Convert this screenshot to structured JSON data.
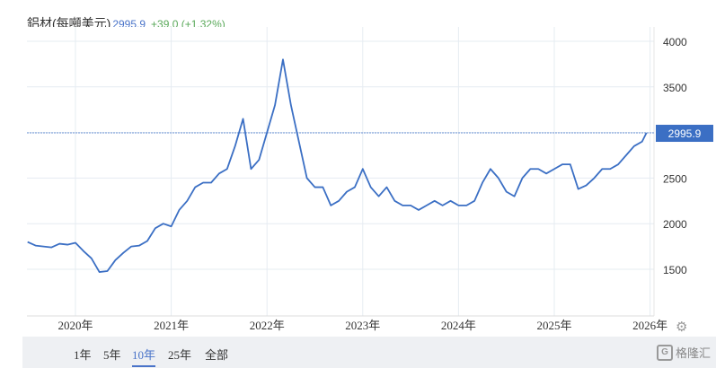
{
  "header": {
    "title": "鋁材(每噸美元)",
    "price": "2995.9",
    "change": "+39.0 (+1.32%)"
  },
  "colors": {
    "line": "#3b6fc4",
    "price_label_bg": "#3b6fc4",
    "change": "#5aa95a",
    "grid": "#e6ecf2"
  },
  "chart_data": {
    "type": "line",
    "title": "鋁材(每噸美元)",
    "ylim": [
      1200,
      4200
    ],
    "yticks": [
      1500,
      2000,
      2500,
      3000,
      3500,
      4000
    ],
    "ytick_labels": [
      "1500",
      "2000",
      "2500",
      "",
      "3500",
      "4000"
    ],
    "xticks": [
      "2020年",
      "2021年",
      "2022年",
      "2023年",
      "2024年",
      "2025年",
      "2026年"
    ],
    "grid": true,
    "last_value_label": "2995.9",
    "last_value": 2995.9,
    "x_start": "2019-07",
    "x_step": "monthly",
    "values": [
      1800,
      1760,
      1750,
      1740,
      1780,
      1770,
      1790,
      1700,
      1620,
      1470,
      1480,
      1600,
      1680,
      1750,
      1760,
      1810,
      1950,
      2000,
      1970,
      2150,
      2250,
      2400,
      2450,
      2450,
      2550,
      2600,
      2850,
      3150,
      2600,
      2700,
      3000,
      3300,
      3800,
      3300,
      2900,
      2500,
      2400,
      2400,
      2200,
      2250,
      2350,
      2400,
      2600,
      2400,
      2300,
      2400,
      2250,
      2200,
      2200,
      2150,
      2200,
      2250,
      2200,
      2250,
      2200,
      2200,
      2250,
      2450,
      2600,
      2500,
      2350,
      2300,
      2500,
      2600,
      2600,
      2550,
      2600,
      2650,
      2650,
      2380,
      2420,
      2500,
      2600,
      2600,
      2650,
      2750,
      2850,
      2900,
      2995.9
    ]
  },
  "range_buttons": [
    {
      "label": "1年"
    },
    {
      "label": "5年"
    },
    {
      "label": "10年",
      "active": true
    },
    {
      "label": "25年"
    },
    {
      "label": "全部"
    }
  ],
  "icons": {
    "settings": "gear-icon"
  },
  "watermark": "格隆汇"
}
